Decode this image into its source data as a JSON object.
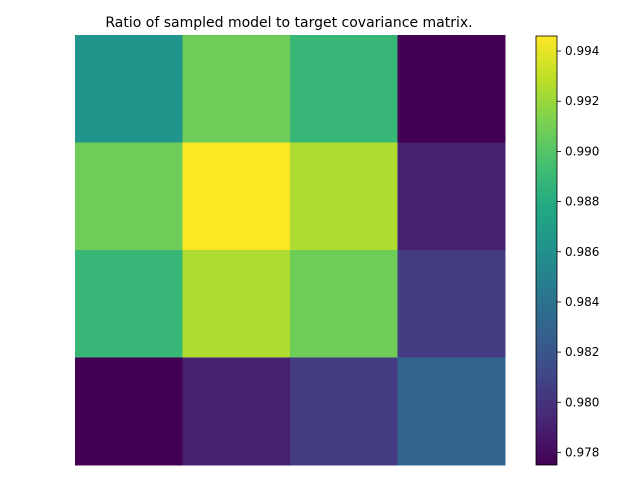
{
  "chart_data": {
    "type": "heatmap",
    "title": "Ratio of sampled model to target covariance matrix.",
    "rows": 4,
    "cols": 4,
    "values": [
      [
        0.9863,
        0.9908,
        0.9888,
        0.9775
      ],
      [
        0.9908,
        0.9946,
        0.9925,
        0.979
      ],
      [
        0.9888,
        0.9925,
        0.9908,
        0.9805
      ],
      [
        0.9775,
        0.979,
        0.9805,
        0.983
      ]
    ],
    "colormap": "viridis",
    "vmin": 0.9775,
    "vmax": 0.9946,
    "colorbar_ticks": [
      0.978,
      0.98,
      0.982,
      0.984,
      0.986,
      0.988,
      0.99,
      0.992,
      0.994
    ],
    "colorbar_tick_labels": [
      "0.978",
      "0.980",
      "0.982",
      "0.984",
      "0.986",
      "0.988",
      "0.990",
      "0.992",
      "0.994"
    ],
    "axes_visible": false
  }
}
